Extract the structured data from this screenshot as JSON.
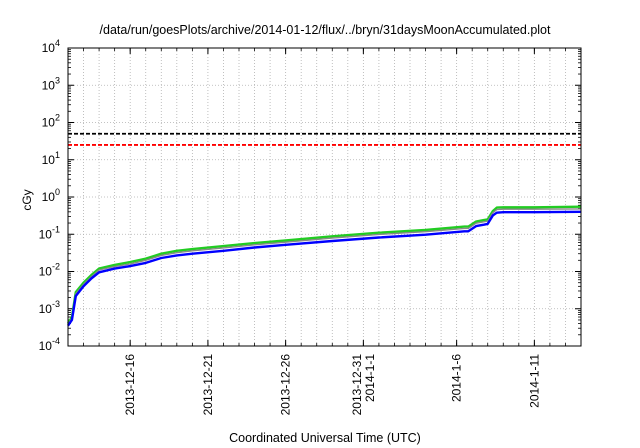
{
  "chart_data": {
    "type": "line",
    "title": "/data/run/goesPlots/archive/2014-01-12/flux/../bryn/31daysMoonAccumulated.plot",
    "xlabel": "Coordinated Universal Time (UTC)",
    "ylabel": "cGy",
    "y_scale": "log",
    "ylim": [
      0.0001,
      10000
    ],
    "xlim": [
      "2013-12-12",
      "2014-01-14"
    ],
    "grid": true,
    "y_ticks": [
      {
        "value": 0.0001,
        "base": "10",
        "exp": "-4"
      },
      {
        "value": 0.001,
        "base": "10",
        "exp": "-3"
      },
      {
        "value": 0.01,
        "base": "10",
        "exp": "-2"
      },
      {
        "value": 0.1,
        "base": "10",
        "exp": "-1"
      },
      {
        "value": 1,
        "base": "10",
        "exp": "0"
      },
      {
        "value": 10,
        "base": "10",
        "exp": "1"
      },
      {
        "value": 100,
        "base": "10",
        "exp": "2"
      },
      {
        "value": 1000,
        "base": "10",
        "exp": "3"
      },
      {
        "value": 10000,
        "base": "10",
        "exp": "4"
      }
    ],
    "x_ticks": [
      {
        "value": "2013-12-16",
        "label": [
          "2013-12-16"
        ]
      },
      {
        "value": "2013-12-21",
        "label": [
          "2013-12-21"
        ]
      },
      {
        "value": "2013-12-26",
        "label": [
          "2013-12-26"
        ]
      },
      {
        "value": "2013-12-31",
        "label": [
          "2013-12-31",
          "2014-1-1"
        ]
      },
      {
        "value": "2014-01-06",
        "label": [
          "2014-1-6"
        ]
      },
      {
        "value": "2014-01-11",
        "label": [
          "2014-1-11"
        ]
      }
    ],
    "reference_lines": [
      {
        "value": 50,
        "color": "#000000",
        "style": "dashed"
      },
      {
        "value": 25,
        "color": "#ff0000",
        "style": "dashed"
      }
    ],
    "series": [
      {
        "color": "#22cc22",
        "x": [
          "2013-12-12T00:00",
          "2013-12-12T06:00",
          "2013-12-12T12:00",
          "2013-12-13T00:00",
          "2013-12-13T12:00",
          "2013-12-14T00:00",
          "2013-12-15T00:00",
          "2013-12-16T00:00",
          "2013-12-17T00:00",
          "2013-12-18T00:00",
          "2013-12-19T00:00",
          "2013-12-20T00:00",
          "2013-12-22T00:00",
          "2013-12-24T00:00",
          "2013-12-26T00:00",
          "2013-12-29T00:00",
          "2014-01-01T00:00",
          "2014-01-04T00:00",
          "2014-01-06T12:00",
          "2014-01-06T18:00",
          "2014-01-07T06:00",
          "2014-01-07T18:00",
          "2014-01-08T00:00",
          "2014-01-08T08:00",
          "2014-01-08T14:00",
          "2014-01-09T00:00",
          "2014-01-11T00:00",
          "2014-01-14T00:00"
        ],
        "y": [
          0.0004,
          0.0006,
          0.0028,
          0.005,
          0.008,
          0.012,
          0.015,
          0.018,
          0.022,
          0.03,
          0.036,
          0.04,
          0.048,
          0.058,
          0.068,
          0.088,
          0.11,
          0.13,
          0.16,
          0.16,
          0.22,
          0.24,
          0.25,
          0.42,
          0.52,
          0.53,
          0.53,
          0.55
        ]
      },
      {
        "color": "#888888",
        "x": [
          "2013-12-12T00:00",
          "2013-12-12T06:00",
          "2013-12-12T12:00",
          "2013-12-13T00:00",
          "2013-12-13T12:00",
          "2013-12-14T00:00",
          "2013-12-15T00:00",
          "2013-12-16T00:00",
          "2013-12-17T00:00",
          "2013-12-18T00:00",
          "2013-12-19T00:00",
          "2013-12-20T00:00",
          "2013-12-22T00:00",
          "2013-12-24T00:00",
          "2013-12-26T00:00",
          "2013-12-29T00:00",
          "2014-01-01T00:00",
          "2014-01-04T00:00",
          "2014-01-06T12:00",
          "2014-01-06T18:00",
          "2014-01-07T06:00",
          "2014-01-07T18:00",
          "2014-01-08T00:00",
          "2014-01-08T08:00",
          "2014-01-08T14:00",
          "2014-01-09T00:00",
          "2014-01-11T00:00",
          "2014-01-14T00:00"
        ],
        "y": [
          0.00037,
          0.00055,
          0.0025,
          0.0045,
          0.0072,
          0.011,
          0.0135,
          0.016,
          0.02,
          0.027,
          0.032,
          0.036,
          0.043,
          0.052,
          0.061,
          0.079,
          0.099,
          0.117,
          0.144,
          0.144,
          0.198,
          0.216,
          0.225,
          0.38,
          0.46,
          0.47,
          0.47,
          0.48
        ]
      },
      {
        "color": "#0000ff",
        "x": [
          "2013-12-12T00:00",
          "2013-12-12T06:00",
          "2013-12-12T12:00",
          "2013-12-13T00:00",
          "2013-12-13T12:00",
          "2013-12-14T00:00",
          "2013-12-15T00:00",
          "2013-12-16T00:00",
          "2013-12-17T00:00",
          "2013-12-18T00:00",
          "2013-12-19T00:00",
          "2013-12-20T00:00",
          "2013-12-22T00:00",
          "2013-12-24T00:00",
          "2013-12-26T00:00",
          "2013-12-29T00:00",
          "2014-01-01T00:00",
          "2014-01-04T00:00",
          "2014-01-06T12:00",
          "2014-01-06T18:00",
          "2014-01-07T06:00",
          "2014-01-07T18:00",
          "2014-01-08T00:00",
          "2014-01-08T08:00",
          "2014-01-08T14:00",
          "2014-01-09T00:00",
          "2014-01-11T00:00",
          "2014-01-14T00:00"
        ],
        "y": [
          0.00035,
          0.0005,
          0.0022,
          0.004,
          0.0065,
          0.0095,
          0.012,
          0.014,
          0.017,
          0.023,
          0.027,
          0.03,
          0.036,
          0.044,
          0.052,
          0.066,
          0.082,
          0.097,
          0.12,
          0.12,
          0.165,
          0.18,
          0.19,
          0.32,
          0.38,
          0.39,
          0.39,
          0.4
        ]
      }
    ]
  }
}
